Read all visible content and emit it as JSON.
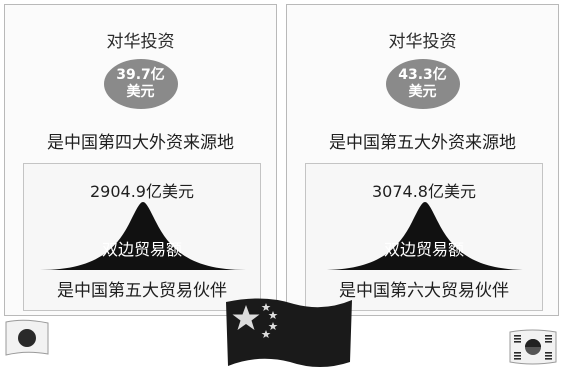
{
  "panels": [
    {
      "investment_title": "对华投资",
      "investment_amount": "39.7亿",
      "investment_unit": "美元",
      "investment_rank": "是中国第四大外资来源地",
      "trade_value": "2904.9亿美元",
      "trade_label": "双边贸易额",
      "trade_rank": "是中国第五大贸易伙伴"
    },
    {
      "investment_title": "对华投资",
      "investment_amount": "43.3亿",
      "investment_unit": "美元",
      "investment_rank": "是中国第五大外资来源地",
      "trade_value": "3074.8亿美元",
      "trade_label": "双边贸易额",
      "trade_rank": "是中国第六大贸易伙伴"
    }
  ],
  "flags": {
    "left": "japan-flag-icon",
    "center": "china-flag-icon",
    "right": "south-korea-flag-icon"
  },
  "colors": {
    "bubble": "#8a8a8a",
    "curve": "#111111",
    "china_flag": "#1a1a1a"
  }
}
